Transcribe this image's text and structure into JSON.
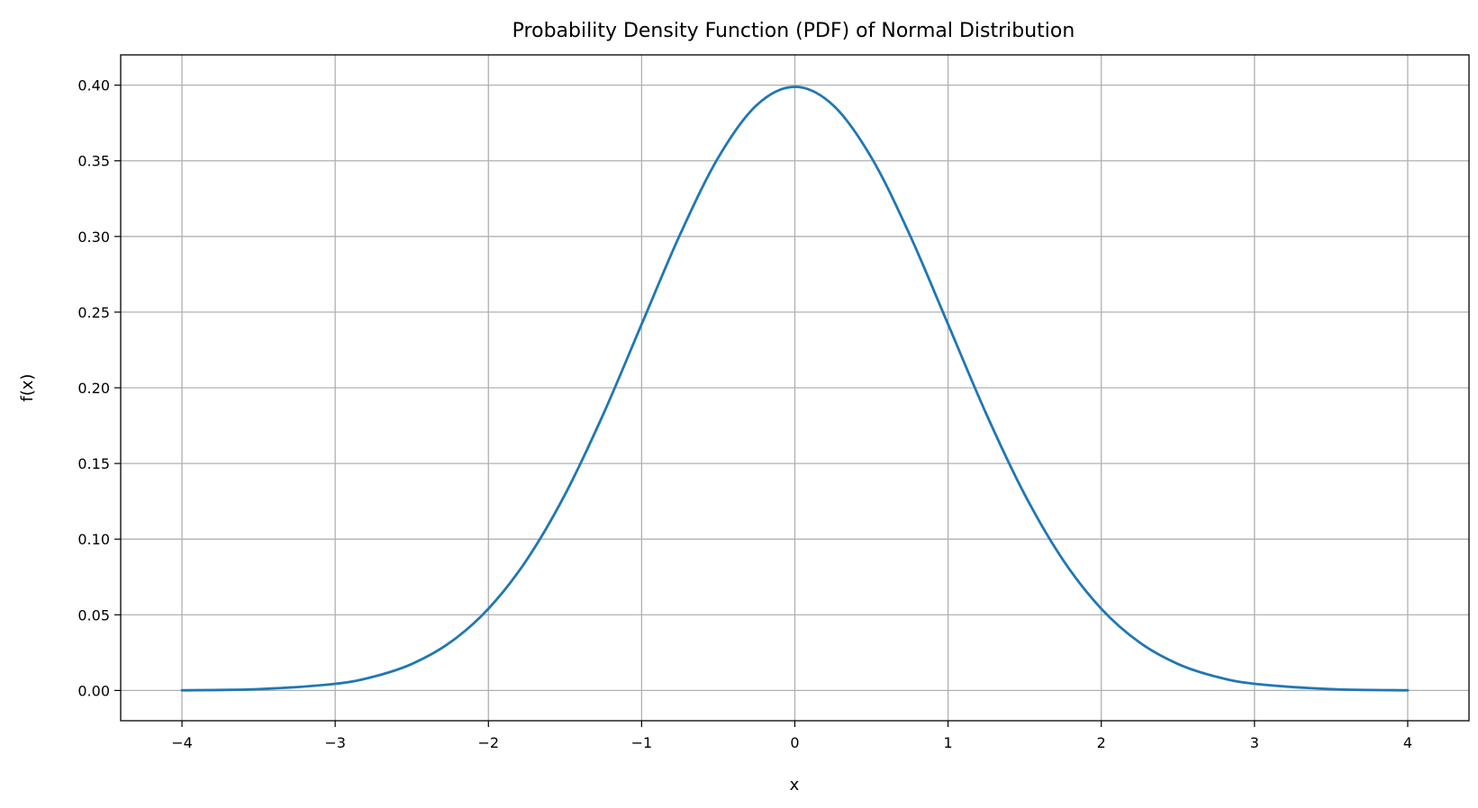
{
  "chart_data": {
    "type": "line",
    "title": "Probability Density Function (PDF) of Normal Distribution",
    "xlabel": "x",
    "ylabel": "f(x)",
    "xlim": [
      -4.4,
      4.4
    ],
    "ylim": [
      -0.02,
      0.42
    ],
    "xticks": [
      -4,
      -3,
      -2,
      -1,
      0,
      1,
      2,
      3,
      4
    ],
    "xtick_labels": [
      "−4",
      "−3",
      "−2",
      "−1",
      "0",
      "1",
      "2",
      "3",
      "4"
    ],
    "yticks": [
      0.0,
      0.05,
      0.1,
      0.15,
      0.2,
      0.25,
      0.3,
      0.35,
      0.4
    ],
    "ytick_labels": [
      "0.00",
      "0.05",
      "0.10",
      "0.15",
      "0.20",
      "0.25",
      "0.30",
      "0.35",
      "0.40"
    ],
    "grid": true,
    "series": [
      {
        "color": "#1f77b4",
        "x": [
          -4.0,
          -3.5,
          -3.0,
          -2.75,
          -2.5,
          -2.25,
          -2.0,
          -1.75,
          -1.5,
          -1.25,
          -1.0,
          -0.75,
          -0.5,
          -0.25,
          0.0,
          0.25,
          0.5,
          0.75,
          1.0,
          1.25,
          1.5,
          1.75,
          2.0,
          2.25,
          2.5,
          2.75,
          3.0,
          3.5,
          4.0
        ],
        "y": [
          0.0001,
          0.0009,
          0.0044,
          0.0091,
          0.0175,
          0.0317,
          0.054,
          0.0863,
          0.1295,
          0.1826,
          0.242,
          0.3011,
          0.3521,
          0.3867,
          0.3989,
          0.3867,
          0.3521,
          0.3011,
          0.242,
          0.1826,
          0.1295,
          0.0863,
          0.054,
          0.0317,
          0.0175,
          0.0091,
          0.0044,
          0.0009,
          0.0001
        ]
      }
    ]
  }
}
